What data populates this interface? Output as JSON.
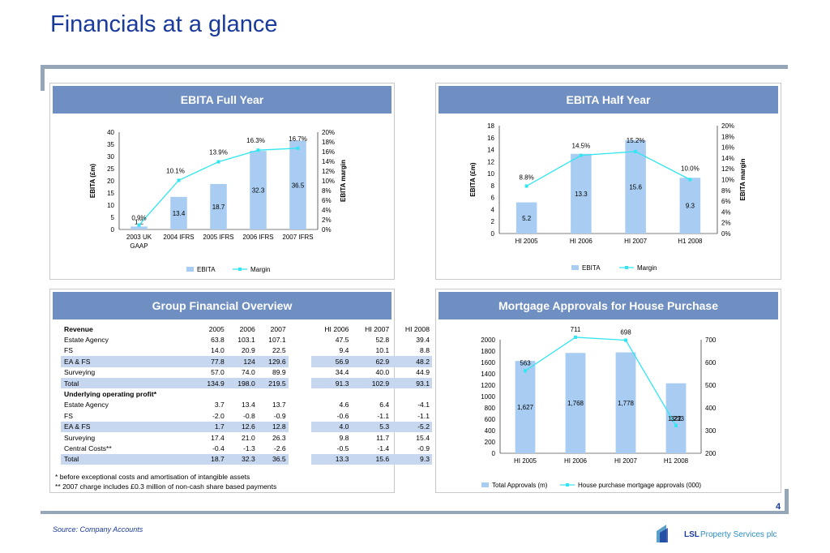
{
  "title": "Financials at a glance",
  "page_number": "4",
  "source": "Source: Company Accounts",
  "logo": {
    "text": "LSL Property Services plc"
  },
  "colors": {
    "accent": "#1a3a9c",
    "panel_header": "#6f8fc2",
    "bar": "#a9cdf2",
    "line": "#33e5f0",
    "band": "#c6d7ef",
    "rule": "#95a6b8"
  },
  "panels": {
    "ebita_full": "EBITA  Full Year",
    "ebita_half": "EBITA Half Year",
    "group": "Group Financial Overview",
    "mortgage": "Mortgage Approvals for House Purchase"
  },
  "chart_data": [
    {
      "type": "bar",
      "categories": [
        "2003 UK GAAP",
        "2004 IFRS",
        "2005 IFRS",
        "2006 IFRS",
        "2007 IFRS"
      ],
      "category_lines": [
        [
          "2003 UK",
          "GAAP"
        ],
        [
          "2004 IFRS"
        ],
        [
          "2005 IFRS"
        ],
        [
          "2006 IFRS"
        ],
        [
          "2007 IFRS"
        ]
      ],
      "series": [
        {
          "name": "EBITA",
          "values": [
            1.2,
            13.4,
            18.7,
            32.3,
            36.5
          ],
          "labels": [
            "1.2",
            "13.4",
            "18.7",
            "32.3",
            "36.5"
          ]
        },
        {
          "name": "Margin",
          "values": [
            0.9,
            10.1,
            13.9,
            16.3,
            16.7
          ],
          "labels": [
            "0.9%",
            "10.1%",
            "13.9%",
            "16.3%",
            "16.7%"
          ]
        }
      ],
      "ylabel": "EBITA (£m)",
      "y2label": "EBITA margin",
      "ylim": [
        0,
        40
      ],
      "yticks": [
        "0",
        "5",
        "10",
        "15",
        "20",
        "25",
        "30",
        "35",
        "40"
      ],
      "y2lim": [
        0,
        20
      ],
      "y2ticks": [
        "0%",
        "2%",
        "4%",
        "6%",
        "8%",
        "10%",
        "12%",
        "14%",
        "16%",
        "18%",
        "20%"
      ],
      "legend": "bottom"
    },
    {
      "type": "bar",
      "categories": [
        "HI 2005",
        "HI 2006",
        "HI 2007",
        "H1 2008"
      ],
      "category_lines": [
        [
          "HI 2005"
        ],
        [
          "HI 2006"
        ],
        [
          "HI 2007"
        ],
        [
          "H1 2008"
        ]
      ],
      "series": [
        {
          "name": "EBITA",
          "values": [
            5.2,
            13.3,
            15.6,
            9.3
          ],
          "labels": [
            "5.2",
            "13.3",
            "15.6",
            "9.3"
          ]
        },
        {
          "name": "Margin",
          "values": [
            8.8,
            14.5,
            15.2,
            10.0
          ],
          "labels": [
            "8.8%",
            "14.5%",
            "15.2%",
            "10.0%"
          ]
        }
      ],
      "ylabel": "EBITA (£m)",
      "y2label": "EBITA margin",
      "ylim": [
        0,
        18
      ],
      "yticks": [
        "0",
        "2",
        "4",
        "6",
        "8",
        "10",
        "12",
        "14",
        "16",
        "18"
      ],
      "y2lim": [
        0,
        20
      ],
      "y2ticks": [
        "0%",
        "2%",
        "4%",
        "6%",
        "8%",
        "10%",
        "12%",
        "14%",
        "16%",
        "18%",
        "20%"
      ],
      "legend": "bottom"
    },
    {
      "type": "bar",
      "categories": [
        "HI 2005",
        "HI 2006",
        "HI 2007",
        "H1 2008"
      ],
      "category_lines": [
        [
          "HI 2005"
        ],
        [
          "HI 2006"
        ],
        [
          "HI 2007"
        ],
        [
          "H1 2008"
        ]
      ],
      "series": [
        {
          "name": "Total Approvals (m)",
          "values": [
            1627,
            1768,
            1778,
            1233
          ],
          "labels": [
            "1,627",
            "1,768",
            "1,778",
            "1,233"
          ]
        },
        {
          "name": "House purchase mortgage approvals (000)",
          "values": [
            563,
            711,
            698,
            322
          ],
          "labels": [
            "563",
            "711",
            "698",
            "322"
          ]
        }
      ],
      "ylabel": "",
      "y2label": "",
      "ylim": [
        0,
        2000
      ],
      "yticks": [
        "0",
        "200",
        "400",
        "600",
        "800",
        "1000",
        "1200",
        "1400",
        "1600",
        "1800",
        "2000"
      ],
      "y2lim": [
        200,
        700
      ],
      "y2ticks": [
        "200",
        "300",
        "400",
        "500",
        "600",
        "700"
      ],
      "legend": "bottom"
    }
  ],
  "table": {
    "headers": [
      "Revenue",
      "2005",
      "2006",
      "2007",
      "HI 2006",
      "HI 2007",
      "HI 2008"
    ],
    "rows": [
      {
        "label": "Estate Agency",
        "values": [
          "63.8",
          "103.1",
          "107.1",
          "47.5",
          "52.8",
          "39.4"
        ],
        "band": false,
        "bold": false
      },
      {
        "label": "FS",
        "values": [
          "14.0",
          "20.9",
          "22.5",
          "9.4",
          "10.1",
          "8.8"
        ],
        "band": false,
        "bold": false
      },
      {
        "label": "EA & FS",
        "values": [
          "77.8",
          "124",
          "129.6",
          "56.9",
          "62.9",
          "48.2"
        ],
        "band": true,
        "bold": false
      },
      {
        "label": "Surveying",
        "values": [
          "57.0",
          "74.0",
          "89.9",
          "34.4",
          "40.0",
          "44.9"
        ],
        "band": false,
        "bold": false
      },
      {
        "label": "Total",
        "values": [
          "134.9",
          "198.0",
          "219.5",
          "91.3",
          "102.9",
          "93.1"
        ],
        "band": true,
        "bold": false
      },
      {
        "label": "Underlying operating profit*",
        "values": [
          "",
          "",
          "",
          "",
          "",
          ""
        ],
        "band": false,
        "bold": true
      },
      {
        "label": "Estate Agency",
        "values": [
          "3.7",
          "13.4",
          "13.7",
          "4.6",
          "6.4",
          "-4.1"
        ],
        "band": false,
        "bold": false
      },
      {
        "label": "FS",
        "values": [
          "-2.0",
          "-0.8",
          "-0.9",
          "-0.6",
          "-1.1",
          "-1.1"
        ],
        "band": false,
        "bold": false
      },
      {
        "label": "EA & FS",
        "values": [
          "1.7",
          "12.6",
          "12.8",
          "4.0",
          "5.3",
          "-5.2"
        ],
        "band": true,
        "bold": false
      },
      {
        "label": "Surveying",
        "values": [
          "17.4",
          "21.0",
          "26.3",
          "9.8",
          "11.7",
          "15.4"
        ],
        "band": false,
        "bold": false
      },
      {
        "label": "Central Costs**",
        "values": [
          "-0.4",
          "-1.3",
          "-2.6",
          "-0.5",
          "-1.4",
          "-0.9"
        ],
        "band": false,
        "bold": false
      },
      {
        "label": "Total",
        "values": [
          "18.7",
          "32.3",
          "36.5",
          "13.3",
          "15.6",
          "9.3"
        ],
        "band": true,
        "bold": false
      }
    ],
    "notes": [
      "*   before exceptional costs and amortisation of intangible assets",
      "** 2007 charge includes £0.3 million of non-cash share based payments"
    ]
  }
}
